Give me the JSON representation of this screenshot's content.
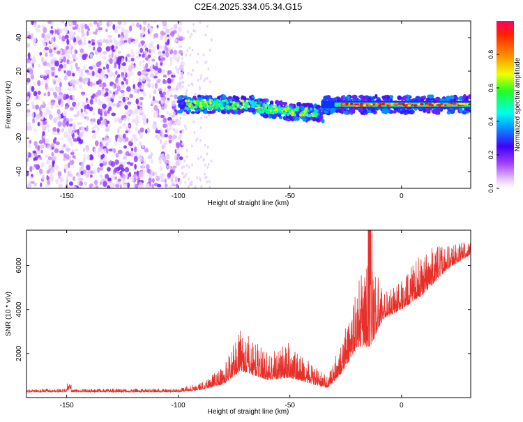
{
  "title": "C2E4.2025.334.05.34.G15",
  "chart_data": [
    {
      "type": "heatmap",
      "xlabel": "Height of straight line (km)",
      "ylabel": "Frequency (Hz)",
      "xlim": [
        -168,
        31
      ],
      "ylim": [
        -50,
        50
      ],
      "xticks": [
        -150,
        -100,
        -50,
        0
      ],
      "yticks": [
        -40,
        -20,
        0,
        20,
        40
      ],
      "colorbar": {
        "label": "Normalized spectral amplitude",
        "range": [
          0,
          1
        ],
        "ticks": [
          "0.0",
          "0.2",
          "0.4",
          "0.6",
          "0.8"
        ],
        "colors": [
          "#ffffff",
          "#cc66ff",
          "#6600ff",
          "#0000ff",
          "#00ffff",
          "#00ff00",
          "#ffff00",
          "#ff6600",
          "#ff0000"
        ]
      },
      "features": [
        {
          "x_range": [
            -168,
            -98
          ],
          "y_range": [
            -50,
            50
          ],
          "amplitude": 0.1,
          "note": "diffuse scattered noise"
        },
        {
          "x_range": [
            -100,
            31
          ],
          "center_freq": 0,
          "amplitude": 0.6
        },
        {
          "x_range": [
            -35,
            31
          ],
          "center_freq": 0,
          "amplitude": 1.0
        }
      ]
    },
    {
      "type": "line",
      "xlabel": "Height of straight line (km)",
      "ylabel": "SNR (10 * v/v)",
      "xlim": [
        -168,
        31
      ],
      "ylim": [
        0,
        7600
      ],
      "xticks": [
        -150,
        -100,
        -50,
        0
      ],
      "yticks": [
        2000,
        4000,
        6000
      ],
      "color": "#e8302a",
      "envelope": [
        {
          "x": -168,
          "base": 250,
          "spread": 120
        },
        {
          "x": -150,
          "base": 250,
          "spread": 150
        },
        {
          "x": -100,
          "base": 250,
          "spread": 150
        },
        {
          "x": -90,
          "base": 350,
          "spread": 350
        },
        {
          "x": -80,
          "base": 600,
          "spread": 800
        },
        {
          "x": -72,
          "base": 1200,
          "spread": 1900
        },
        {
          "x": -60,
          "base": 800,
          "spread": 1300
        },
        {
          "x": -50,
          "base": 900,
          "spread": 1600
        },
        {
          "x": -40,
          "base": 600,
          "spread": 900
        },
        {
          "x": -33,
          "base": 450,
          "spread": 500
        },
        {
          "x": -26,
          "base": 1200,
          "spread": 1700
        },
        {
          "x": -20,
          "base": 2300,
          "spread": 2800
        },
        {
          "x": -14,
          "base": 2300,
          "spread": 4200
        },
        {
          "x": -8,
          "base": 3600,
          "spread": 1200
        },
        {
          "x": 0,
          "base": 4000,
          "spread": 1300
        },
        {
          "x": 10,
          "base": 4700,
          "spread": 2000
        },
        {
          "x": 20,
          "base": 5800,
          "spread": 1200
        },
        {
          "x": 31,
          "base": 6500,
          "spread": 600
        }
      ]
    }
  ]
}
